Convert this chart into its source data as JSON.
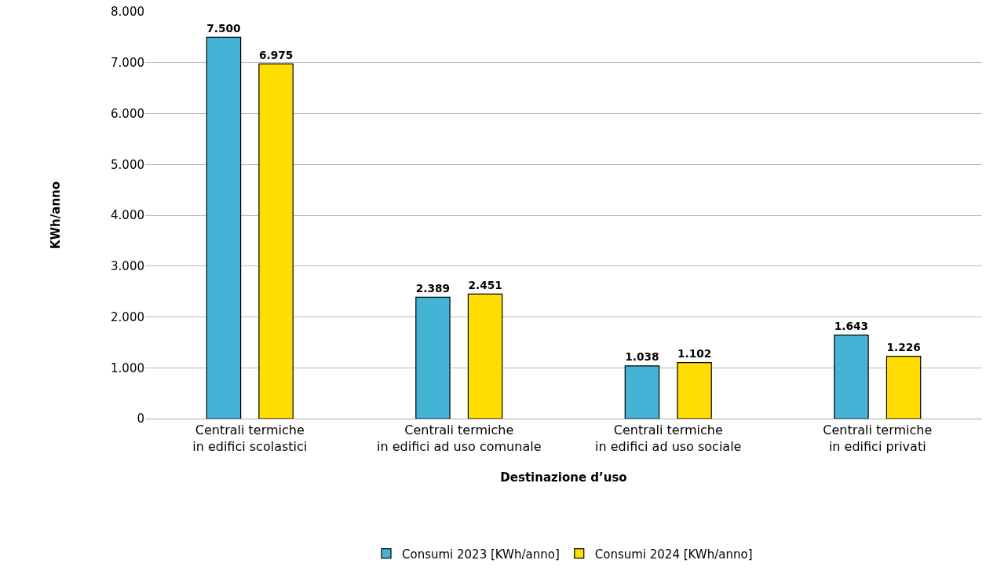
{
  "chart_data": {
    "type": "bar",
    "xlabel": "Destinazione d’uso",
    "ylabel": "KWh/anno",
    "categories": [
      "Centrali termiche\nin edifici scolastici",
      "Centrali termiche\nin edifici ad uso comunale",
      "Centrali termiche\nin edifici ad uso sociale",
      "Centrali termiche\nin edifici privati"
    ],
    "series": [
      {
        "name": "Consumi 2023 [KWh/anno]",
        "color": "#45b3d6",
        "values": [
          7500,
          2389,
          1038,
          1643
        ],
        "value_labels": [
          "7.500",
          "2.389",
          "1.038",
          "1.643"
        ]
      },
      {
        "name": "Consumi 2024 [KWh/anno]",
        "color": "#ffdd00",
        "values": [
          6975,
          2451,
          1102,
          1226
        ],
        "value_labels": [
          "6.975",
          "2.451",
          "1.102",
          "1.226"
        ]
      }
    ],
    "ylim": [
      0,
      8000
    ],
    "yticks": [
      0,
      {
        "value": 1000,
        "label": "1.000"
      },
      {
        "value": 2000,
        "label": "2.000"
      },
      {
        "value": 3000,
        "label": "3.000"
      },
      {
        "value": 4000,
        "label": "4.000"
      },
      {
        "value": 5000,
        "label": "5.000"
      },
      {
        "value": 6000,
        "label": "6.000"
      },
      {
        "value": 7000,
        "label": "7.000"
      },
      {
        "value": 8000,
        "label": "8.000"
      }
    ],
    "grid": "y",
    "legend": "bottom"
  }
}
